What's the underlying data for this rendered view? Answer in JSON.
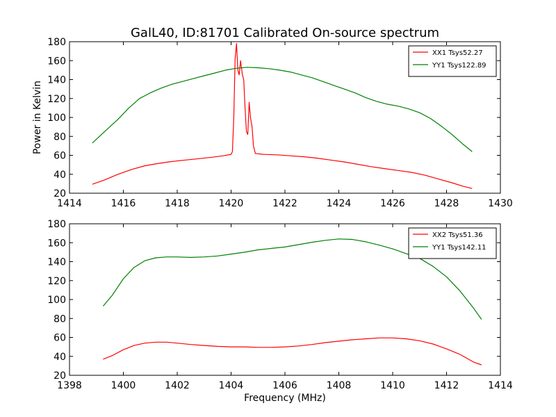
{
  "chart_data": [
    {
      "type": "line",
      "title": "GalL40, ID:81701 Calibrated On-source spectrum",
      "xlabel": "",
      "ylabel": "Power in Kelvin",
      "xlim": [
        1414,
        1430
      ],
      "ylim": [
        20,
        180
      ],
      "xticks": [
        1414,
        1416,
        1418,
        1420,
        1422,
        1424,
        1426,
        1428,
        1430
      ],
      "yticks": [
        20,
        40,
        60,
        80,
        100,
        120,
        140,
        160,
        180
      ],
      "grid": false,
      "legend_position": "top-right",
      "series": [
        {
          "name": "XX1 Tsys52.27",
          "color": "#ff0000",
          "points": [
            [
              1414.85,
              29.5
            ],
            [
              1415.3,
              34
            ],
            [
              1415.8,
              40
            ],
            [
              1416.3,
              45
            ],
            [
              1416.8,
              49
            ],
            [
              1417.3,
              51.5
            ],
            [
              1417.8,
              53.5
            ],
            [
              1418.3,
              55
            ],
            [
              1418.8,
              56.5
            ],
            [
              1419.3,
              58
            ],
            [
              1419.7,
              59.5
            ],
            [
              1420.0,
              61
            ],
            [
              1420.05,
              64
            ],
            [
              1420.1,
              100
            ],
            [
              1420.15,
              162
            ],
            [
              1420.2,
              178
            ],
            [
              1420.25,
              150
            ],
            [
              1420.3,
              145
            ],
            [
              1420.35,
              160
            ],
            [
              1420.42,
              145
            ],
            [
              1420.47,
              140
            ],
            [
              1420.52,
              110
            ],
            [
              1420.57,
              85
            ],
            [
              1420.62,
              82
            ],
            [
              1420.67,
              116
            ],
            [
              1420.72,
              100
            ],
            [
              1420.78,
              90
            ],
            [
              1420.83,
              70
            ],
            [
              1420.9,
              62
            ],
            [
              1421.2,
              61
            ],
            [
              1421.7,
              60.5
            ],
            [
              1422.2,
              59.5
            ],
            [
              1422.7,
              58.5
            ],
            [
              1423.2,
              57
            ],
            [
              1423.7,
              55
            ],
            [
              1424.2,
              53
            ],
            [
              1424.7,
              50.5
            ],
            [
              1425.2,
              48
            ],
            [
              1425.7,
              46
            ],
            [
              1426.2,
              44
            ],
            [
              1426.7,
              42
            ],
            [
              1427.2,
              39
            ],
            [
              1427.7,
              35
            ],
            [
              1428.2,
              31
            ],
            [
              1428.6,
              27.5
            ],
            [
              1428.95,
              25
            ]
          ]
        },
        {
          "name": "YY1 Tsys122.89",
          "color": "#008000",
          "points": [
            [
              1414.85,
              73
            ],
            [
              1415.3,
              85
            ],
            [
              1415.8,
              98
            ],
            [
              1416.2,
              110
            ],
            [
              1416.6,
              120
            ],
            [
              1417.0,
              126
            ],
            [
              1417.4,
              131
            ],
            [
              1417.8,
              135
            ],
            [
              1418.2,
              138
            ],
            [
              1418.6,
              141
            ],
            [
              1419.0,
              144
            ],
            [
              1419.4,
              147
            ],
            [
              1419.8,
              150
            ],
            [
              1420.2,
              152
            ],
            [
              1420.6,
              153
            ],
            [
              1421.0,
              152.5
            ],
            [
              1421.4,
              151.5
            ],
            [
              1421.8,
              150
            ],
            [
              1422.2,
              148
            ],
            [
              1422.6,
              145
            ],
            [
              1423.0,
              142
            ],
            [
              1423.4,
              138
            ],
            [
              1423.8,
              134
            ],
            [
              1424.2,
              130
            ],
            [
              1424.6,
              126
            ],
            [
              1425.0,
              121
            ],
            [
              1425.4,
              117
            ],
            [
              1425.8,
              114
            ],
            [
              1426.2,
              112
            ],
            [
              1426.6,
              109
            ],
            [
              1427.0,
              105
            ],
            [
              1427.4,
              99
            ],
            [
              1427.8,
              91
            ],
            [
              1428.2,
              82
            ],
            [
              1428.6,
              72
            ],
            [
              1428.95,
              64
            ]
          ]
        }
      ]
    },
    {
      "type": "line",
      "title": "",
      "xlabel": "Frequency (MHz)",
      "ylabel": "",
      "xlim": [
        1398,
        1414
      ],
      "ylim": [
        20,
        180
      ],
      "xticks": [
        1398,
        1400,
        1402,
        1404,
        1406,
        1408,
        1410,
        1412,
        1414
      ],
      "yticks": [
        20,
        40,
        60,
        80,
        100,
        120,
        140,
        160,
        180
      ],
      "grid": false,
      "legend_position": "top-right",
      "series": [
        {
          "name": "XX2 Tsys51.36",
          "color": "#ff0000",
          "points": [
            [
              1399.25,
              37
            ],
            [
              1399.6,
              41
            ],
            [
              1400.0,
              47
            ],
            [
              1400.4,
              51.5
            ],
            [
              1400.8,
              54
            ],
            [
              1401.2,
              55
            ],
            [
              1401.6,
              55
            ],
            [
              1402.0,
              54
            ],
            [
              1402.5,
              52.5
            ],
            [
              1403.0,
              51.5
            ],
            [
              1403.5,
              50.5
            ],
            [
              1404.0,
              50
            ],
            [
              1404.5,
              50
            ],
            [
              1405.0,
              49.5
            ],
            [
              1405.5,
              49.5
            ],
            [
              1406.0,
              50
            ],
            [
              1406.5,
              51
            ],
            [
              1407.0,
              52.5
            ],
            [
              1407.5,
              54.5
            ],
            [
              1408.0,
              56
            ],
            [
              1408.5,
              57.5
            ],
            [
              1409.0,
              58.5
            ],
            [
              1409.5,
              59.5
            ],
            [
              1410.0,
              59.5
            ],
            [
              1410.5,
              58.5
            ],
            [
              1411.0,
              56.5
            ],
            [
              1411.5,
              53
            ],
            [
              1412.0,
              48
            ],
            [
              1412.5,
              42
            ],
            [
              1413.0,
              34
            ],
            [
              1413.3,
              31
            ]
          ]
        },
        {
          "name": "YY1 Tsys142.11",
          "color": "#008000",
          "points": [
            [
              1399.25,
              93
            ],
            [
              1399.6,
              105
            ],
            [
              1400.0,
              122
            ],
            [
              1400.4,
              134
            ],
            [
              1400.8,
              141
            ],
            [
              1401.2,
              144
            ],
            [
              1401.6,
              145
            ],
            [
              1402.0,
              145
            ],
            [
              1402.5,
              144.5
            ],
            [
              1403.0,
              145
            ],
            [
              1403.5,
              146
            ],
            [
              1404.0,
              148
            ],
            [
              1404.5,
              150
            ],
            [
              1405.0,
              152.5
            ],
            [
              1405.5,
              154
            ],
            [
              1406.0,
              155.5
            ],
            [
              1406.5,
              158
            ],
            [
              1407.0,
              160.5
            ],
            [
              1407.5,
              162.5
            ],
            [
              1408.0,
              164
            ],
            [
              1408.5,
              163.5
            ],
            [
              1409.0,
              161
            ],
            [
              1409.5,
              157.5
            ],
            [
              1410.0,
              153.5
            ],
            [
              1410.5,
              148.5
            ],
            [
              1411.0,
              143.5
            ],
            [
              1411.5,
              135
            ],
            [
              1412.0,
              124
            ],
            [
              1412.5,
              109
            ],
            [
              1413.0,
              91
            ],
            [
              1413.3,
              79
            ]
          ]
        }
      ]
    }
  ]
}
